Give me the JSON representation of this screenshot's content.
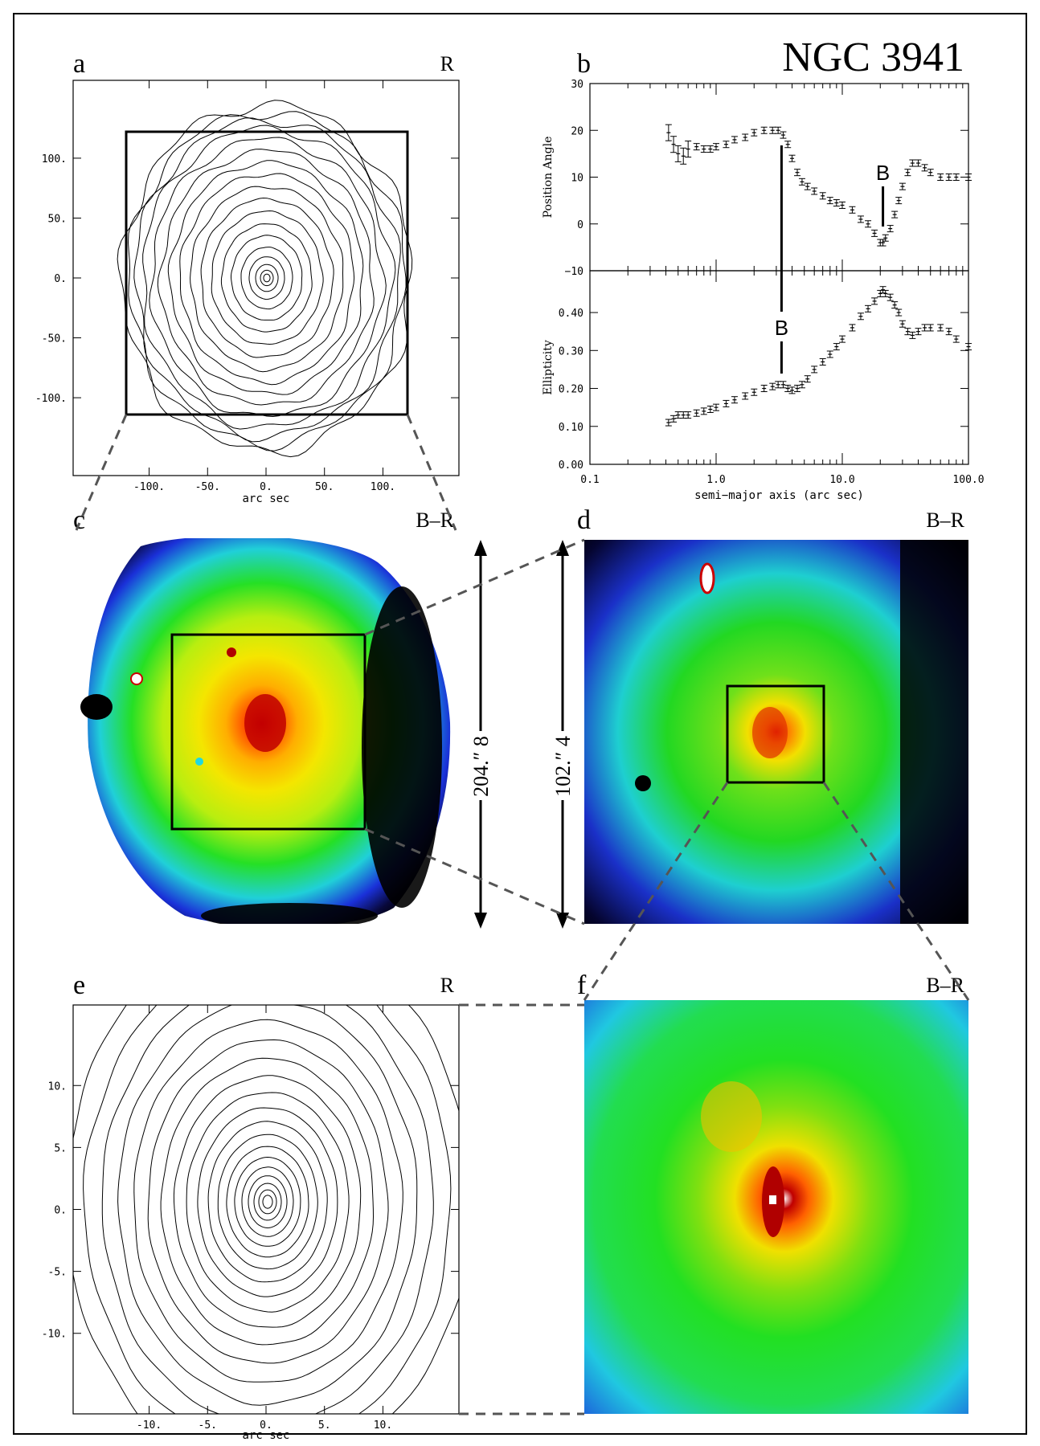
{
  "figure": {
    "galaxy": "NGC 3941",
    "panels": {
      "a": {
        "letter": "a",
        "band": "R",
        "xlabel": "arc sec",
        "xticks": [
          "-100.",
          "-50.",
          "0.",
          "50.",
          "100."
        ],
        "yticks": [
          "100.",
          "50.",
          "0.",
          "-50.",
          "-100."
        ]
      },
      "b": {
        "letter": "b"
      },
      "c": {
        "letter": "c",
        "band": "B–R",
        "size_label": "204.″ 8"
      },
      "d": {
        "letter": "d",
        "band": "B–R",
        "size_label": "102.″ 4"
      },
      "e": {
        "letter": "e",
        "band": "R",
        "xlabel": "arc sec",
        "xticks": [
          "-10.",
          "-5.",
          "0.",
          "5.",
          "10."
        ],
        "yticks": [
          "10.",
          "5.",
          "0.",
          "-5.",
          "-10."
        ]
      },
      "f": {
        "letter": "f",
        "band": "B–R"
      }
    },
    "colors": {
      "blue": "#1010c8",
      "green": "#22e022",
      "yellow": "#f2e000",
      "red": "#e01010",
      "black": "#000000",
      "cyan": "#20d8e0"
    }
  },
  "chart_data": {
    "type": "scatter",
    "xlabel": "semi−major axis (arc sec)",
    "x_scale": "log",
    "xlim": [
      0.1,
      100.0
    ],
    "xticks": [
      "0.1",
      "1.0",
      "10.0",
      "100.0"
    ],
    "panels": [
      {
        "ylabel": "Position Angle",
        "ylim": [
          -10,
          30
        ],
        "yticks": [
          "30",
          "20",
          "10",
          "0",
          "−10"
        ],
        "annotation": "B",
        "annotation_x": 21,
        "x": [
          0.42,
          0.46,
          0.5,
          0.55,
          0.6,
          0.7,
          0.8,
          0.9,
          1.0,
          1.2,
          1.4,
          1.7,
          2.0,
          2.4,
          2.8,
          3.1,
          3.4,
          3.7,
          4.0,
          4.4,
          4.8,
          5.3,
          6.0,
          7,
          8,
          9,
          10,
          12,
          14,
          16,
          18,
          20,
          21,
          22,
          24,
          26,
          28,
          30,
          33,
          36,
          40,
          45,
          50,
          60,
          70,
          80,
          100
        ],
        "y": [
          19.5,
          17,
          15,
          14.5,
          16,
          16.5,
          16,
          16,
          16.5,
          17,
          18,
          18.5,
          19.5,
          20,
          20,
          20,
          19,
          17,
          14,
          11,
          9,
          8,
          7,
          6,
          5,
          4.5,
          4,
          3,
          1,
          0,
          -2,
          -4,
          -4,
          -3,
          -1,
          2,
          5,
          8,
          11,
          13,
          13,
          12,
          11,
          10,
          10,
          10,
          10
        ]
      },
      {
        "ylabel": "Ellipticity",
        "ylim": [
          0,
          0.5
        ],
        "yticks": [
          "0.40",
          "0.30",
          "0.20",
          "0.10",
          "0.00"
        ],
        "annotation": "B",
        "annotation_x": 3.3,
        "x": [
          0.42,
          0.46,
          0.5,
          0.55,
          0.6,
          0.7,
          0.8,
          0.9,
          1.0,
          1.2,
          1.4,
          1.7,
          2.0,
          2.4,
          2.8,
          3.1,
          3.4,
          3.7,
          4.0,
          4.4,
          4.8,
          5.3,
          6.0,
          7,
          8,
          9,
          10,
          12,
          14,
          16,
          18,
          20,
          21,
          22,
          24,
          26,
          28,
          30,
          33,
          36,
          40,
          45,
          50,
          60,
          70,
          80,
          100
        ],
        "y": [
          0.11,
          0.12,
          0.13,
          0.13,
          0.13,
          0.135,
          0.14,
          0.145,
          0.15,
          0.16,
          0.17,
          0.18,
          0.19,
          0.2,
          0.205,
          0.21,
          0.21,
          0.2,
          0.195,
          0.2,
          0.21,
          0.225,
          0.25,
          0.27,
          0.29,
          0.31,
          0.33,
          0.36,
          0.39,
          0.41,
          0.43,
          0.45,
          0.46,
          0.45,
          0.44,
          0.42,
          0.4,
          0.37,
          0.35,
          0.34,
          0.35,
          0.36,
          0.36,
          0.36,
          0.35,
          0.33,
          0.31
        ]
      }
    ]
  }
}
